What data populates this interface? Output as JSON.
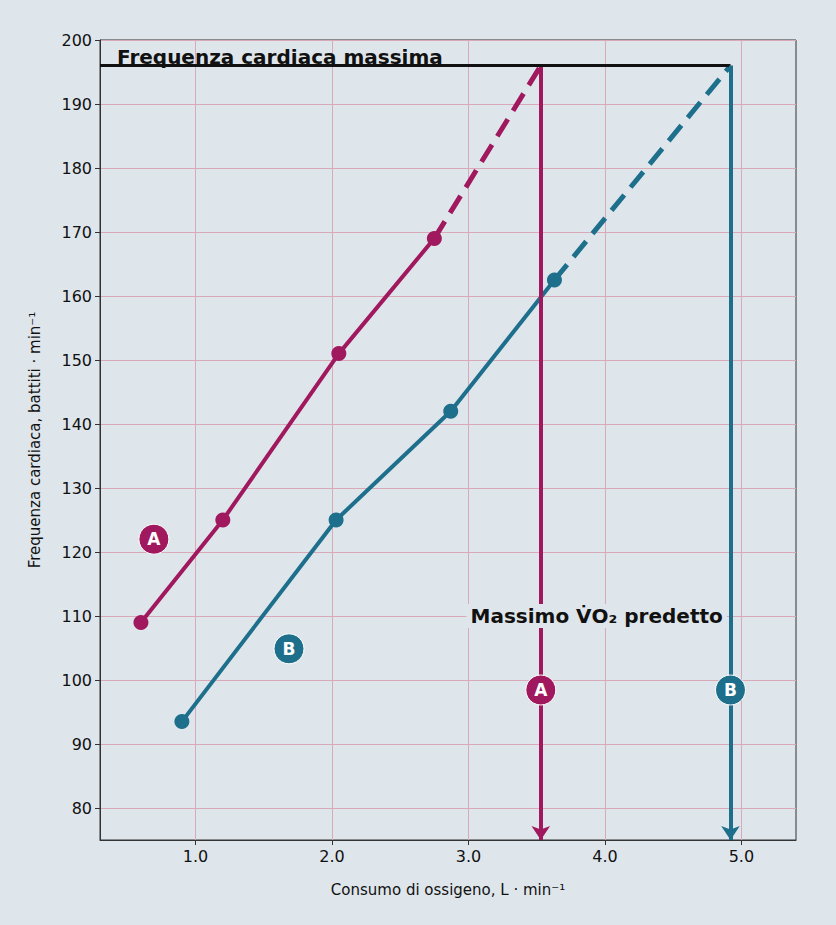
{
  "chart_data": {
    "type": "line",
    "title": "Frequenza cardiaca massima",
    "annotation": "Massimo V̇O₂ predetto",
    "x_label": "Consumo di ossigeno, L · min⁻¹",
    "y_label": "Frequenza cardiaca, battiti · min⁻¹",
    "max_heart_rate": 196,
    "xlim": [
      0.3,
      5.4
    ],
    "ylim": [
      75,
      200
    ],
    "xticks": [
      {
        "value": 1,
        "label": "1.0"
      },
      {
        "value": 2,
        "label": "2.0"
      },
      {
        "value": 3,
        "label": "3.0"
      },
      {
        "value": 4,
        "label": "4.0"
      },
      {
        "value": 5,
        "label": "5.0"
      }
    ],
    "yticks": [
      80,
      90,
      100,
      110,
      120,
      130,
      140,
      150,
      160,
      170,
      180,
      190,
      200
    ],
    "grid": true,
    "series": [
      {
        "name": "A",
        "color": "#a0185e",
        "x": [
          0.6,
          1.2,
          2.05,
          2.75
        ],
        "values": [
          109,
          125,
          151,
          169
        ],
        "predicted_vo2max": 3.53,
        "marker": "circle",
        "line_style": "solid"
      },
      {
        "name": "B",
        "color": "#1d6f8c",
        "x": [
          0.9,
          2.03,
          2.87,
          3.63
        ],
        "values": [
          93.5,
          125,
          142,
          162.5
        ],
        "predicted_vo2max": 4.92,
        "marker": "circle",
        "line_style": "solid"
      }
    ]
  }
}
